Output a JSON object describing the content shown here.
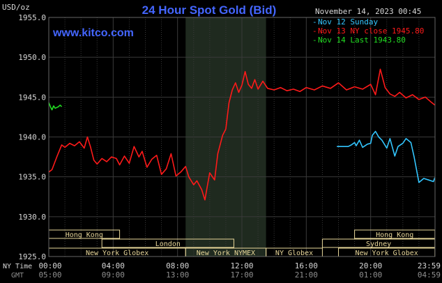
{
  "chart_data": {
    "type": "line",
    "title": "24 Hour Spot Gold (Bid)",
    "watermark": "www.kitco.com",
    "timestamp": "November 14, 2023 00:45",
    "y_unit_label": "USD/oz",
    "ylim": [
      1925.0,
      1955.0
    ],
    "yticks": [
      "1955.0",
      "1950.0",
      "1945.0",
      "1940.0",
      "1935.0",
      "1930.0",
      "1925.0"
    ],
    "x_row_labels": [
      "NY Time",
      "GMT"
    ],
    "xticks_ny": [
      "00:00",
      "04:00",
      "08:00",
      "12:00",
      "16:00",
      "20:00",
      "23:59"
    ],
    "xticks_gmt": [
      "05:00",
      "09:00",
      "13:00",
      "17:00",
      "21:00",
      "01:00",
      "04:59"
    ],
    "grid": true,
    "shaded_session": {
      "start_hour": 8.5,
      "end_hour": 13.5
    },
    "legend_position": "top-right",
    "colors": {
      "nov12": "#33c6ff",
      "nov13": "#ff1a1a",
      "nov14": "#22dd22",
      "title": "#4466ff",
      "axis_text": "#d8d8d8",
      "grid": "#3a3a3a",
      "session": "#1f2a1f",
      "market_bar": "#e8d79a"
    },
    "series": [
      {
        "name": "Nov 12 Sunday",
        "color_key": "nov12",
        "x": [
          17.9,
          18.2,
          18.6,
          18.8,
          19.0,
          19.1,
          19.3,
          19.5,
          19.8,
          20.0,
          20.1,
          20.3,
          20.5,
          20.7,
          21.0,
          21.2,
          21.5,
          21.7,
          22.0,
          22.2,
          22.5,
          22.7,
          23.0,
          23.3,
          23.6,
          23.9,
          23.99
        ],
        "y": [
          1938.8,
          1938.8,
          1938.8,
          1939.0,
          1939.3,
          1938.9,
          1939.6,
          1938.7,
          1939.1,
          1939.2,
          1940.2,
          1940.7,
          1940.0,
          1939.6,
          1938.6,
          1939.8,
          1937.6,
          1938.8,
          1939.2,
          1939.8,
          1939.3,
          1937.5,
          1934.3,
          1934.8,
          1934.6,
          1934.4,
          1934.9
        ]
      },
      {
        "name": "Nov 13 NY close 1945.80",
        "color_key": "nov13",
        "x": [
          0.0,
          0.2,
          0.5,
          0.8,
          1.0,
          1.3,
          1.6,
          1.9,
          2.2,
          2.4,
          2.6,
          2.8,
          3.0,
          3.3,
          3.6,
          3.9,
          4.2,
          4.4,
          4.7,
          5.0,
          5.3,
          5.6,
          5.8,
          6.1,
          6.4,
          6.7,
          7.0,
          7.3,
          7.6,
          7.9,
          8.2,
          8.5,
          8.7,
          9.0,
          9.2,
          9.5,
          9.7,
          10.0,
          10.3,
          10.5,
          10.8,
          11.0,
          11.2,
          11.4,
          11.6,
          11.8,
          12.0,
          12.2,
          12.4,
          12.6,
          12.8,
          13.0,
          13.3,
          13.6,
          14.0,
          14.4,
          14.8,
          15.2,
          15.6,
          16.0,
          16.5,
          17.0,
          17.5,
          18.0,
          18.5,
          19.0,
          19.5,
          20.0,
          20.3,
          20.6,
          20.9,
          21.2,
          21.5,
          21.8,
          22.2,
          22.6,
          23.0,
          23.4,
          23.8,
          23.99
        ],
        "y": [
          1935.6,
          1935.9,
          1937.5,
          1939.0,
          1938.7,
          1939.2,
          1938.9,
          1939.4,
          1938.6,
          1940.0,
          1938.7,
          1937.1,
          1936.6,
          1937.3,
          1936.9,
          1937.5,
          1937.3,
          1936.5,
          1937.6,
          1936.7,
          1938.8,
          1937.5,
          1938.2,
          1936.2,
          1937.2,
          1937.7,
          1935.3,
          1936.0,
          1937.9,
          1935.1,
          1935.6,
          1936.3,
          1935.0,
          1934.0,
          1934.5,
          1933.4,
          1932.1,
          1935.5,
          1934.6,
          1937.9,
          1940.2,
          1941.0,
          1944.3,
          1945.9,
          1946.8,
          1945.6,
          1946.5,
          1948.2,
          1946.6,
          1946.1,
          1947.2,
          1946.0,
          1947.0,
          1946.1,
          1945.9,
          1946.2,
          1945.8,
          1946.0,
          1945.7,
          1946.2,
          1945.9,
          1946.4,
          1946.1,
          1946.8,
          1945.9,
          1946.3,
          1946.0,
          1946.6,
          1945.3,
          1948.5,
          1946.2,
          1945.4,
          1945.1,
          1945.6,
          1944.9,
          1945.3,
          1944.7,
          1945.0,
          1944.3,
          1944.0
        ]
      },
      {
        "name": "Nov 14 Last 1943.80",
        "color_key": "nov14",
        "x": [
          0.0,
          0.1,
          0.2,
          0.3,
          0.4,
          0.5,
          0.6,
          0.7,
          0.8
        ],
        "y": [
          1944.3,
          1943.8,
          1943.4,
          1943.9,
          1943.6,
          1943.7,
          1943.8,
          1944.0,
          1943.8
        ]
      }
    ],
    "market_rows": [
      [
        {
          "label": "Hong Kong",
          "start": 0.0,
          "end": 4.4
        },
        {
          "label": "Hong Kong",
          "start": 19.0,
          "end": 23.99
        }
      ],
      [
        {
          "label": "London",
          "start": 3.3,
          "end": 11.5
        },
        {
          "label": "Sydney",
          "start": 17.0,
          "end": 23.99
        }
      ],
      [
        {
          "label": "New York Globex",
          "start": 0.0,
          "end": 8.5
        },
        {
          "label": "New York NYMEX",
          "start": 8.5,
          "end": 13.5
        },
        {
          "label": "NY Globex",
          "start": 13.5,
          "end": 17.0
        },
        {
          "label": "New York Globex",
          "start": 18.0,
          "end": 23.99
        }
      ]
    ]
  }
}
